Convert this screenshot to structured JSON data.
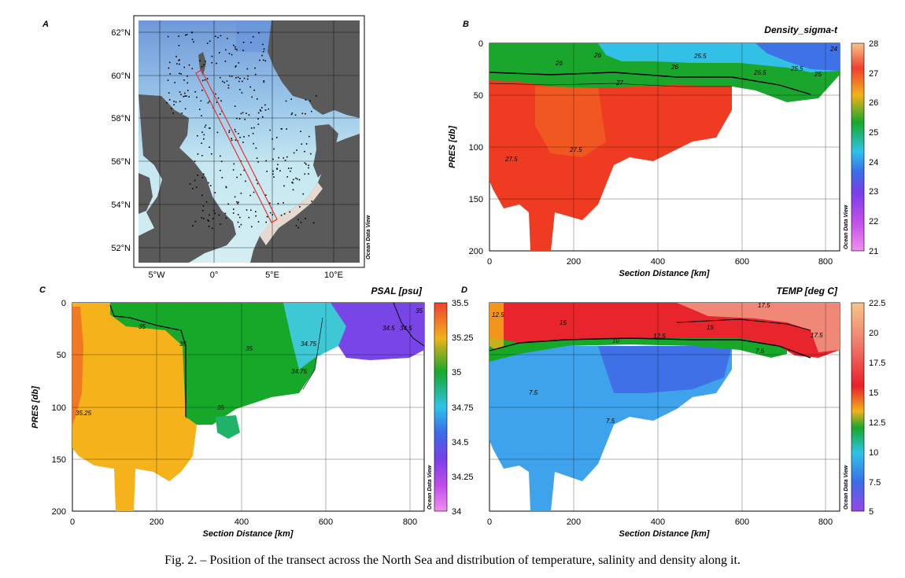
{
  "caption": "Fig. 2. – Position of the transect across the North Sea and distribution of temperature, salinity and density along it.",
  "watermark": "Ocean Data View",
  "chart_data": [
    {
      "panel": "A",
      "type": "map",
      "lat_labels": [
        "62°N",
        "60°N",
        "58°N",
        "56°N",
        "54°N",
        "52°N"
      ],
      "lon_labels": [
        "5°W",
        "0°",
        "5°E",
        "10°E"
      ],
      "transect": {
        "start": {
          "lon": -1.5,
          "lat": 60.0
        },
        "end": {
          "lon": 5.0,
          "lat": 53.5
        }
      },
      "colors": {
        "land": "#5e5e5e",
        "shelf": "#bfe3ee",
        "deep": "#7aa7dd",
        "transect": "#e8322c"
      }
    },
    {
      "panel": "B",
      "type": "heatmap",
      "title": "Density_sigma-t",
      "xlabel": "Section Distance [km]",
      "ylabel": "PRES [db]",
      "xlim": [
        0,
        840
      ],
      "ylim": [
        200,
        0
      ],
      "x_ticks": [
        "0",
        "200",
        "400",
        "600",
        "800"
      ],
      "y_ticks": [
        "0",
        "50",
        "100",
        "150",
        "200"
      ],
      "colorbar_ticks": [
        "28",
        "27",
        "26",
        "25",
        "24",
        "23",
        "22",
        "21"
      ],
      "contour_labels": [
        "26",
        "26",
        "26",
        "25.5",
        "25.5",
        "24",
        "26.5",
        "25",
        "27",
        "27.5",
        "27.5"
      ],
      "upper_value": 25.5,
      "lower_value": 27.4
    },
    {
      "panel": "C",
      "type": "heatmap",
      "title": "PSAL [psu]",
      "xlabel": "Section Distance [km]",
      "ylabel": "PRES [db]",
      "xlim": [
        0,
        840
      ],
      "ylim": [
        200,
        0
      ],
      "x_ticks": [
        "0",
        "200",
        "400",
        "600",
        "800"
      ],
      "y_ticks": [
        "0",
        "50",
        "100",
        "150",
        "200"
      ],
      "colorbar_ticks": [
        "35.5",
        "35.25",
        "35",
        "34.75",
        "34.5",
        "34.25",
        "34"
      ],
      "contour_labels": [
        "35",
        "35",
        "35",
        "35",
        "34.75",
        "34.75",
        "34.5",
        "34.5",
        "35.25",
        "35"
      ],
      "west_value": 35.2,
      "middle_value": 35.0,
      "east_value": 34.6
    },
    {
      "panel": "D",
      "type": "heatmap",
      "title": "TEMP [deg C]",
      "xlabel": "Section Distance [km]",
      "ylabel": "",
      "xlim": [
        0,
        840
      ],
      "ylim": [
        200,
        0
      ],
      "x_ticks": [
        "0",
        "200",
        "400",
        "600",
        "800"
      ],
      "y_ticks": [],
      "colorbar_ticks": [
        "22.5",
        "20",
        "17.5",
        "15",
        "12.5",
        "10",
        "7.5",
        "5"
      ],
      "contour_labels": [
        "12.5",
        "15",
        "12.5",
        "15",
        "17.5",
        "17.5",
        "10",
        "7.5",
        "7.5",
        "7.5"
      ],
      "upper_value": 15,
      "lower_value": 7.5
    }
  ]
}
